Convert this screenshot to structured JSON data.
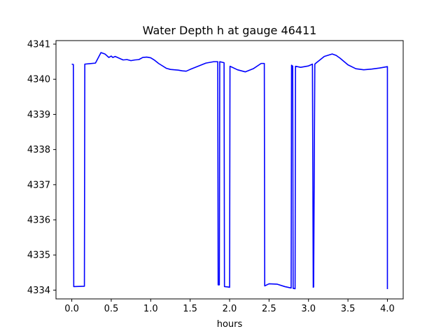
{
  "chart_data": {
    "type": "line",
    "title": "Water Depth h at gauge 46411",
    "xlabel": "hours",
    "ylabel": "",
    "xlim": [
      -0.2,
      4.2
    ],
    "ylim": [
      4333.75,
      4341.1
    ],
    "xticks": [
      0.0,
      0.5,
      1.0,
      1.5,
      2.0,
      2.5,
      3.0,
      3.5,
      4.0
    ],
    "xtick_labels": [
      "0.0",
      "0.5",
      "1.0",
      "1.5",
      "2.0",
      "2.5",
      "3.0",
      "3.5",
      "4.0"
    ],
    "yticks": [
      4334,
      4335,
      4336,
      4337,
      4338,
      4339,
      4340,
      4341
    ],
    "ytick_labels": [
      "4334",
      "4335",
      "4336",
      "4337",
      "4338",
      "4339",
      "4340",
      "4341"
    ],
    "grid": false,
    "series": [
      {
        "color": "#0000ff",
        "x": [
          0.0,
          0.02,
          0.025,
          0.16,
          0.165,
          0.3,
          0.37,
          0.42,
          0.47,
          0.5,
          0.52,
          0.55,
          0.6,
          0.65,
          0.7,
          0.75,
          0.8,
          0.85,
          0.9,
          0.95,
          1.0,
          1.05,
          1.1,
          1.2,
          1.25,
          1.3,
          1.35,
          1.4,
          1.45,
          1.5,
          1.6,
          1.7,
          1.8,
          1.85,
          1.855,
          1.87,
          1.875,
          1.93,
          1.935,
          1.98,
          2.0,
          2.005,
          2.1,
          2.2,
          2.3,
          2.4,
          2.44,
          2.445,
          2.5,
          2.6,
          2.7,
          2.78,
          2.785,
          2.8,
          2.805,
          2.83,
          2.835,
          2.9,
          3.0,
          3.05,
          3.06,
          3.065,
          3.08,
          3.1,
          3.2,
          3.3,
          3.35,
          3.4,
          3.5,
          3.6,
          3.7,
          3.8,
          3.9,
          4.0,
          4.0
        ],
        "y": [
          4340.43,
          4340.42,
          4334.1,
          4334.11,
          4340.43,
          4340.46,
          4340.76,
          4340.72,
          4340.62,
          4340.66,
          4340.62,
          4340.65,
          4340.6,
          4340.55,
          4340.56,
          4340.53,
          4340.55,
          4340.56,
          4340.62,
          4340.63,
          4340.61,
          4340.54,
          4340.45,
          4340.31,
          4340.28,
          4340.27,
          4340.26,
          4340.24,
          4340.23,
          4340.28,
          4340.37,
          4340.46,
          4340.5,
          4340.5,
          4334.15,
          4334.15,
          4340.5,
          4340.47,
          4334.1,
          4334.09,
          4334.08,
          4340.37,
          4340.27,
          4340.21,
          4340.3,
          4340.45,
          4340.45,
          4334.12,
          4334.18,
          4334.17,
          4334.1,
          4334.06,
          4340.4,
          4340.37,
          4334.05,
          4334.04,
          4340.37,
          4340.34,
          4340.38,
          4340.43,
          4334.08,
          4334.09,
          4340.43,
          4340.47,
          4340.65,
          4340.72,
          4340.68,
          4340.6,
          4340.41,
          4340.3,
          4340.27,
          4340.29,
          4340.32,
          4340.36,
          4334.03
        ]
      }
    ]
  }
}
